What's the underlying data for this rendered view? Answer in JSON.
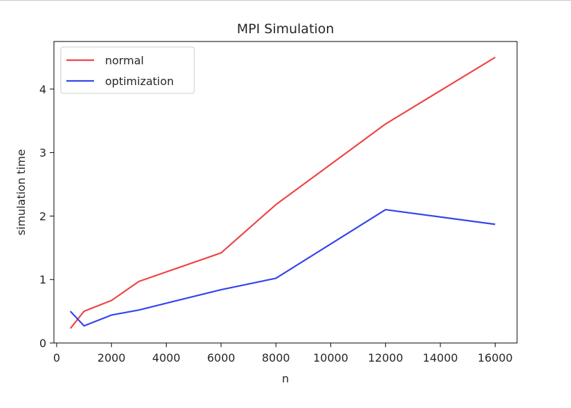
{
  "chart_data": {
    "type": "line",
    "title": "MPI Simulation",
    "xlabel": "n",
    "ylabel": "simulation time",
    "xlim": [
      -100,
      16800
    ],
    "ylim": [
      0,
      4.75
    ],
    "xticks": [
      0,
      2000,
      4000,
      6000,
      8000,
      10000,
      12000,
      14000,
      16000
    ],
    "yticks": [
      0,
      1,
      2,
      3,
      4
    ],
    "grid": false,
    "legend_position": "upper-left",
    "series": [
      {
        "name": "normal",
        "color": "#ee4444",
        "x": [
          500,
          1000,
          2000,
          3000,
          6000,
          8000,
          12000,
          16000
        ],
        "y": [
          0.23,
          0.5,
          0.67,
          0.97,
          1.42,
          2.18,
          3.45,
          4.5
        ]
      },
      {
        "name": "optimization",
        "color": "#3344ee",
        "x": [
          500,
          1000,
          2000,
          3000,
          6000,
          8000,
          12000,
          16000
        ],
        "y": [
          0.5,
          0.27,
          0.44,
          0.52,
          0.84,
          1.02,
          2.1,
          1.87
        ]
      }
    ]
  }
}
